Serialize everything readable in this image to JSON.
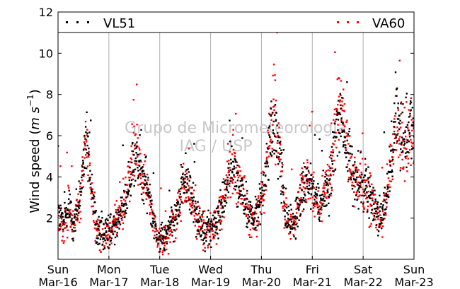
{
  "chart_data": {
    "type": "scatter",
    "ylabel": "Wind speed (m s⁻¹)",
    "ylabel_parts": {
      "main": "Wind speed",
      "unit_base": "m s",
      "unit_exp": "−1"
    },
    "ylim": [
      0,
      12
    ],
    "yticks": [
      2,
      4,
      6,
      8,
      10,
      12
    ],
    "xlim_days": [
      0,
      7
    ],
    "x_ticks": [
      {
        "day": "Sun",
        "date": "Mar-16"
      },
      {
        "day": "Mon",
        "date": "Mar-17"
      },
      {
        "day": "Tue",
        "date": "Mar-18"
      },
      {
        "day": "Wed",
        "date": "Mar-19"
      },
      {
        "day": "Thu",
        "date": "Mar-20"
      },
      {
        "day": "Fri",
        "date": "Mar-21"
      },
      {
        "day": "Sat",
        "date": "Mar-22"
      },
      {
        "day": "Sun",
        "date": "Mar-23"
      }
    ],
    "grid": "vertical",
    "legend_placement": "top, spanning full width",
    "watermark": [
      "Grupo de Micrometeorologia",
      "IAG / USP"
    ],
    "series": [
      {
        "name": "VL51",
        "color": "#000000",
        "profile": [
          [
            0.0,
            2.4
          ],
          [
            0.1,
            1.6
          ],
          [
            0.2,
            2.8
          ],
          [
            0.28,
            1.8
          ],
          [
            0.35,
            2.2
          ],
          [
            0.45,
            3.2
          ],
          [
            0.55,
            6.2
          ],
          [
            0.65,
            3.5
          ],
          [
            0.75,
            1.5
          ],
          [
            0.85,
            1.2
          ],
          [
            0.95,
            1.3
          ],
          [
            1.05,
            1.6
          ],
          [
            1.15,
            1.9
          ],
          [
            1.25,
            2.4
          ],
          [
            1.35,
            2.8
          ],
          [
            1.45,
            4.5
          ],
          [
            1.55,
            5.0
          ],
          [
            1.65,
            4.0
          ],
          [
            1.75,
            3.5
          ],
          [
            1.85,
            2.5
          ],
          [
            1.95,
            1.2
          ],
          [
            2.05,
            0.9
          ],
          [
            2.15,
            1.2
          ],
          [
            2.25,
            1.8
          ],
          [
            2.35,
            2.4
          ],
          [
            2.45,
            3.8
          ],
          [
            2.55,
            3.5
          ],
          [
            2.65,
            2.8
          ],
          [
            2.75,
            2.0
          ],
          [
            2.85,
            1.5
          ],
          [
            2.95,
            1.4
          ],
          [
            3.05,
            1.6
          ],
          [
            3.15,
            2.0
          ],
          [
            3.25,
            3.0
          ],
          [
            3.35,
            3.8
          ],
          [
            3.45,
            4.5
          ],
          [
            3.55,
            3.5
          ],
          [
            3.65,
            3.0
          ],
          [
            3.75,
            2.2
          ],
          [
            3.85,
            1.9
          ],
          [
            3.95,
            2.5
          ],
          [
            4.05,
            3.5
          ],
          [
            4.15,
            5.5
          ],
          [
            4.25,
            6.5
          ],
          [
            4.35,
            5.0
          ],
          [
            4.45,
            2.5
          ],
          [
            4.55,
            1.8
          ],
          [
            4.65,
            1.6
          ],
          [
            4.75,
            2.8
          ],
          [
            4.85,
            3.6
          ],
          [
            4.95,
            3.8
          ],
          [
            5.05,
            3.2
          ],
          [
            5.15,
            2.6
          ],
          [
            5.25,
            3.2
          ],
          [
            5.35,
            3.8
          ],
          [
            5.45,
            6.2
          ],
          [
            5.55,
            7.2
          ],
          [
            5.65,
            5.5
          ],
          [
            5.75,
            4.5
          ],
          [
            5.85,
            4.0
          ],
          [
            5.95,
            3.8
          ],
          [
            6.05,
            3.5
          ],
          [
            6.15,
            3.0
          ],
          [
            6.25,
            2.4
          ],
          [
            6.35,
            2.2
          ],
          [
            6.45,
            3.0
          ],
          [
            6.55,
            4.8
          ],
          [
            6.65,
            6.8
          ],
          [
            6.75,
            6.2
          ],
          [
            6.85,
            6.0
          ],
          [
            6.95,
            6.8
          ],
          [
            7.0,
            6.0
          ]
        ]
      },
      {
        "name": "VA60",
        "color": "#ff0000",
        "profile": [
          [
            0.0,
            2.1
          ],
          [
            0.1,
            1.4
          ],
          [
            0.2,
            2.5
          ],
          [
            0.28,
            1.6
          ],
          [
            0.35,
            2.0
          ],
          [
            0.45,
            3.0
          ],
          [
            0.55,
            6.0
          ],
          [
            0.65,
            3.2
          ],
          [
            0.75,
            1.3
          ],
          [
            0.85,
            1.0
          ],
          [
            0.95,
            1.2
          ],
          [
            1.05,
            1.5
          ],
          [
            1.15,
            2.0
          ],
          [
            1.25,
            2.6
          ],
          [
            1.35,
            3.0
          ],
          [
            1.45,
            4.8
          ],
          [
            1.55,
            5.4
          ],
          [
            1.65,
            4.2
          ],
          [
            1.75,
            3.2
          ],
          [
            1.85,
            2.2
          ],
          [
            1.95,
            1.0
          ],
          [
            2.05,
            0.8
          ],
          [
            2.15,
            1.1
          ],
          [
            2.25,
            1.7
          ],
          [
            2.35,
            2.2
          ],
          [
            2.45,
            3.6
          ],
          [
            2.55,
            3.3
          ],
          [
            2.65,
            2.6
          ],
          [
            2.75,
            1.8
          ],
          [
            2.85,
            1.3
          ],
          [
            2.95,
            1.2
          ],
          [
            3.05,
            1.4
          ],
          [
            3.15,
            1.8
          ],
          [
            3.25,
            3.2
          ],
          [
            3.35,
            4.2
          ],
          [
            3.45,
            4.8
          ],
          [
            3.55,
            3.8
          ],
          [
            3.65,
            3.2
          ],
          [
            3.75,
            2.0
          ],
          [
            3.85,
            1.7
          ],
          [
            3.95,
            2.3
          ],
          [
            4.05,
            3.6
          ],
          [
            4.15,
            6.0
          ],
          [
            4.25,
            7.2
          ],
          [
            4.35,
            5.4
          ],
          [
            4.45,
            2.4
          ],
          [
            4.55,
            1.6
          ],
          [
            4.65,
            1.5
          ],
          [
            4.75,
            3.0
          ],
          [
            4.85,
            3.8
          ],
          [
            4.95,
            3.6
          ],
          [
            5.05,
            3.0
          ],
          [
            5.15,
            2.4
          ],
          [
            5.25,
            3.4
          ],
          [
            5.35,
            4.2
          ],
          [
            5.45,
            6.6
          ],
          [
            5.55,
            7.6
          ],
          [
            5.65,
            5.8
          ],
          [
            5.75,
            4.2
          ],
          [
            5.85,
            3.8
          ],
          [
            5.95,
            3.6
          ],
          [
            6.05,
            3.3
          ],
          [
            6.15,
            2.8
          ],
          [
            6.25,
            2.2
          ],
          [
            6.35,
            2.0
          ],
          [
            6.45,
            2.8
          ],
          [
            6.55,
            4.6
          ],
          [
            6.65,
            6.4
          ],
          [
            6.75,
            6.0
          ],
          [
            6.85,
            5.8
          ],
          [
            6.95,
            6.4
          ],
          [
            7.0,
            5.8
          ]
        ]
      }
    ]
  }
}
